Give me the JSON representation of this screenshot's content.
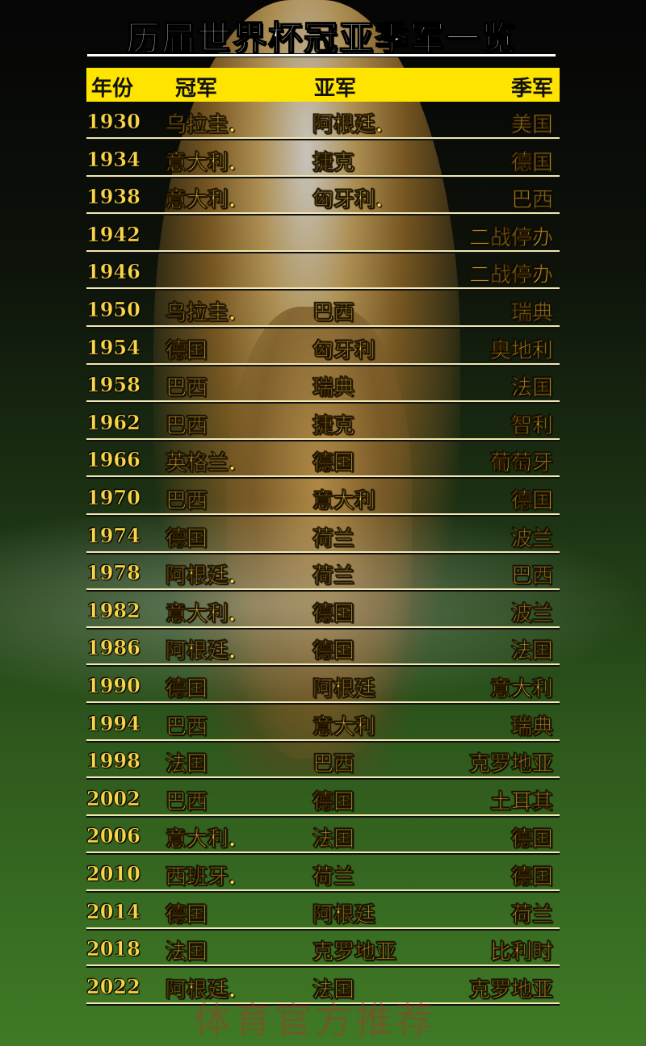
{
  "title": "历届世界杯冠亚季军一览",
  "header": {
    "year": "年份",
    "champion": "冠军",
    "runner_up": "亚军",
    "third": "季军"
  },
  "rows": [
    {
      "year": "1930",
      "champion": "乌拉圭.",
      "runner_up": "阿根廷.",
      "third": "美国"
    },
    {
      "year": "1934",
      "champion": "意大利.",
      "runner_up": "捷克",
      "third": "德国"
    },
    {
      "year": "1938",
      "champion": "意大利.",
      "runner_up": "匈牙利.",
      "third": "巴西"
    },
    {
      "year": "1942",
      "champion": "",
      "runner_up": "",
      "third": "二战停办"
    },
    {
      "year": "1946",
      "champion": "",
      "runner_up": "",
      "third": "二战停办"
    },
    {
      "year": "1950",
      "champion": "乌拉圭.",
      "runner_up": "巴西",
      "third": "瑞典"
    },
    {
      "year": "1954",
      "champion": "德国",
      "runner_up": "匈牙利",
      "third": "奥地利"
    },
    {
      "year": "1958",
      "champion": "巴西",
      "runner_up": "瑞典",
      "third": "法国"
    },
    {
      "year": "1962",
      "champion": "巴西",
      "runner_up": "捷克",
      "third": "智利"
    },
    {
      "year": "1966",
      "champion": "英格兰.",
      "runner_up": "德国",
      "third": "葡萄牙"
    },
    {
      "year": "1970",
      "champion": "巴西",
      "runner_up": "意大利",
      "third": "德国"
    },
    {
      "year": "1974",
      "champion": "德国",
      "runner_up": "荷兰",
      "third": "波兰"
    },
    {
      "year": "1978",
      "champion": "阿根廷.",
      "runner_up": "荷兰",
      "third": "巴西"
    },
    {
      "year": "1982",
      "champion": "意大利.",
      "runner_up": "德国",
      "third": "波兰"
    },
    {
      "year": "1986",
      "champion": "阿根廷.",
      "runner_up": "德国",
      "third": "法国"
    },
    {
      "year": "1990",
      "champion": "德国",
      "runner_up": "阿根廷",
      "third": "意大利"
    },
    {
      "year": "1994",
      "champion": "巴西",
      "runner_up": "意大利",
      "third": "瑞典"
    },
    {
      "year": "1998",
      "champion": "法国",
      "runner_up": "巴西",
      "third": "克罗地亚"
    },
    {
      "year": "2002",
      "champion": "巴西",
      "runner_up": "德国",
      "third": "土耳其"
    },
    {
      "year": "2006",
      "champion": "意大利.",
      "runner_up": "法国",
      "third": "德国"
    },
    {
      "year": "2010",
      "champion": "西班牙.",
      "runner_up": "荷兰",
      "third": "德国"
    },
    {
      "year": "2014",
      "champion": "德国",
      "runner_up": "阿根廷",
      "third": "荷兰"
    },
    {
      "year": "2018",
      "champion": "法国",
      "runner_up": "克罗地亚",
      "third": "比利时"
    },
    {
      "year": "2022",
      "champion": "阿根廷.",
      "runner_up": "法国",
      "third": "克罗地亚"
    }
  ],
  "watermark": "体育官方推荐",
  "colors": {
    "header_bg": "#ffe400",
    "text": "#f6d648",
    "title": "#ffffff"
  }
}
